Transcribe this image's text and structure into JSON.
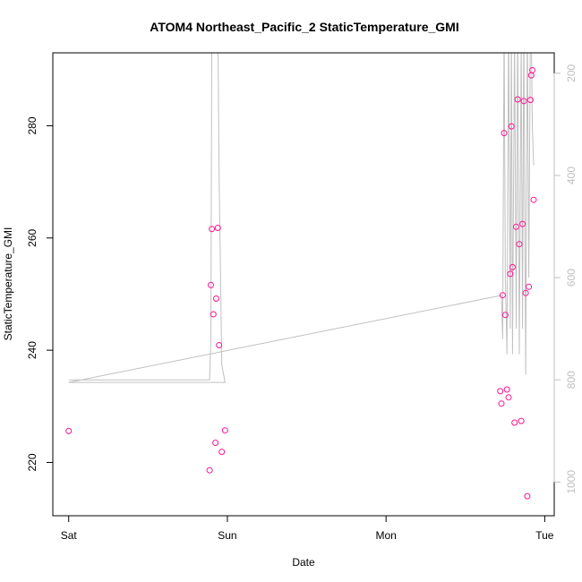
{
  "chart_data": {
    "type": "scatter",
    "title": "ATOM4 Northeast_Pacific_2 StaticTemperature_GMI",
    "xlabel": "Date",
    "ylabel": "StaticTemperature_GMI",
    "x_ticks": [
      {
        "value": 0,
        "label": "Sat"
      },
      {
        "value": 1,
        "label": "Sun"
      },
      {
        "value": 2,
        "label": "Mon"
      },
      {
        "value": 3,
        "label": "Tue"
      }
    ],
    "y_ticks": [
      220,
      240,
      260,
      280
    ],
    "y2_ticks": [
      200,
      400,
      600,
      800,
      1000
    ],
    "xlim": [
      -0.1,
      3.06
    ],
    "ylim": [
      210.5,
      293
    ],
    "y2lim": [
      1066,
      160
    ],
    "colors": {
      "points": "#ff1493",
      "line": "#c0c0c0",
      "right_axis": "#bfbfbf"
    },
    "series": [
      {
        "values": [
          {
            "x": 0.0,
            "y": 225.6
          },
          {
            "x": 0.888,
            "y": 218.6
          },
          {
            "x": 0.896,
            "y": 251.6
          },
          {
            "x": 0.902,
            "y": 261.6
          },
          {
            "x": 0.912,
            "y": 246.4
          },
          {
            "x": 0.925,
            "y": 223.5
          },
          {
            "x": 0.93,
            "y": 249.2
          },
          {
            "x": 0.94,
            "y": 261.8
          },
          {
            "x": 0.948,
            "y": 240.9
          },
          {
            "x": 0.965,
            "y": 221.9
          },
          {
            "x": 0.985,
            "y": 225.7
          },
          {
            "x": 2.72,
            "y": 232.7
          },
          {
            "x": 2.727,
            "y": 230.5
          },
          {
            "x": 2.735,
            "y": 249.8
          },
          {
            "x": 2.744,
            "y": 278.7
          },
          {
            "x": 2.752,
            "y": 246.3
          },
          {
            "x": 2.762,
            "y": 233.0
          },
          {
            "x": 2.772,
            "y": 231.6
          },
          {
            "x": 2.783,
            "y": 253.6
          },
          {
            "x": 2.79,
            "y": 279.9
          },
          {
            "x": 2.797,
            "y": 254.8
          },
          {
            "x": 2.81,
            "y": 227.1
          },
          {
            "x": 2.82,
            "y": 262.0
          },
          {
            "x": 2.83,
            "y": 284.7
          },
          {
            "x": 2.84,
            "y": 258.9
          },
          {
            "x": 2.852,
            "y": 227.4
          },
          {
            "x": 2.86,
            "y": 262.5
          },
          {
            "x": 2.868,
            "y": 284.4
          },
          {
            "x": 2.88,
            "y": 250.2
          },
          {
            "x": 2.89,
            "y": 214.0
          },
          {
            "x": 2.9,
            "y": 251.3
          },
          {
            "x": 2.91,
            "y": 284.6
          },
          {
            "x": 2.915,
            "y": 289.0
          },
          {
            "x": 2.922,
            "y": 289.9
          },
          {
            "x": 2.93,
            "y": 266.8
          }
        ]
      },
      {
        "axis": "right",
        "values": [
          {
            "x": 0.0,
            "y": 800
          },
          {
            "x": 0.888,
            "y": 800
          },
          {
            "x": 0.896,
            "y": 720
          },
          {
            "x": 0.902,
            "y": 100
          },
          {
            "x": 0.912,
            "y": 100
          },
          {
            "x": 0.93,
            "y": 100
          },
          {
            "x": 0.94,
            "y": 100
          },
          {
            "x": 0.948,
            "y": 400
          },
          {
            "x": 0.965,
            "y": 770
          },
          {
            "x": 0.985,
            "y": 805
          },
          {
            "x": 0.0,
            "y": 805
          },
          {
            "x": 2.72,
            "y": 635
          },
          {
            "x": 2.727,
            "y": 635
          },
          {
            "x": 2.735,
            "y": 720
          },
          {
            "x": 2.744,
            "y": 100
          },
          {
            "x": 2.752,
            "y": 600
          },
          {
            "x": 2.762,
            "y": 750
          },
          {
            "x": 2.772,
            "y": 100
          },
          {
            "x": 2.783,
            "y": 700
          },
          {
            "x": 2.79,
            "y": 100
          },
          {
            "x": 2.797,
            "y": 750
          },
          {
            "x": 2.81,
            "y": 120
          },
          {
            "x": 2.82,
            "y": 700
          },
          {
            "x": 2.83,
            "y": 100
          },
          {
            "x": 2.84,
            "y": 750
          },
          {
            "x": 2.852,
            "y": 130
          },
          {
            "x": 2.86,
            "y": 700
          },
          {
            "x": 2.868,
            "y": 100
          },
          {
            "x": 2.88,
            "y": 790
          },
          {
            "x": 2.89,
            "y": 100
          },
          {
            "x": 2.9,
            "y": 600
          },
          {
            "x": 2.91,
            "y": 100
          },
          {
            "x": 2.915,
            "y": 100
          },
          {
            "x": 2.922,
            "y": 300
          },
          {
            "x": 2.93,
            "y": 380
          }
        ]
      }
    ]
  }
}
